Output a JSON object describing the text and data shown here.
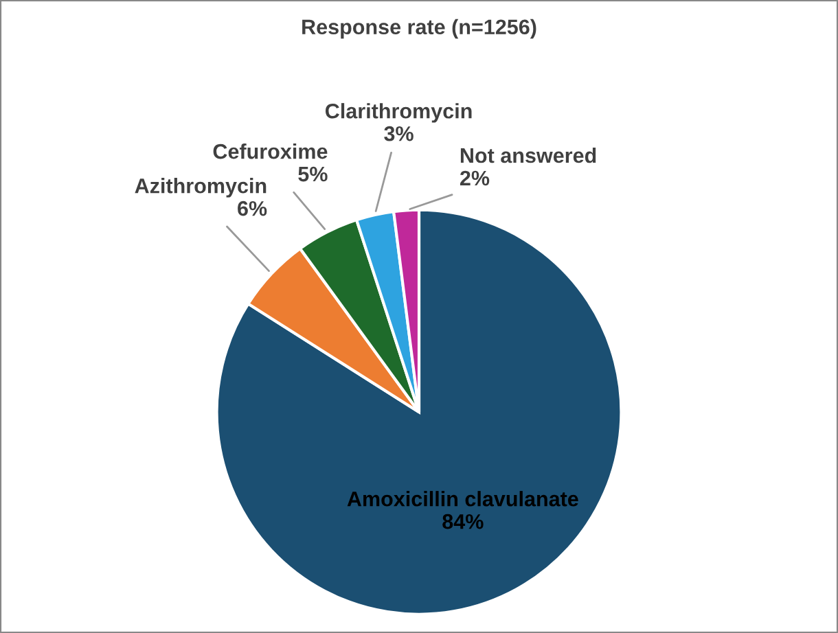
{
  "chart_data": {
    "type": "pie",
    "title": "Response rate (n=1256)",
    "categories": [
      "Amoxicillin clavulanate",
      "Azithromycin",
      "Cefuroxime",
      "Clarithromycin",
      "Not answered"
    ],
    "values": [
      84,
      6,
      5,
      3,
      2
    ],
    "colors": [
      "#1b4f72",
      "#ed7d31",
      "#1e6b2b",
      "#2ea3e0",
      "#c0289a"
    ],
    "value_labels": [
      "84%",
      "6%",
      "5%",
      "3%",
      "2%"
    ]
  }
}
